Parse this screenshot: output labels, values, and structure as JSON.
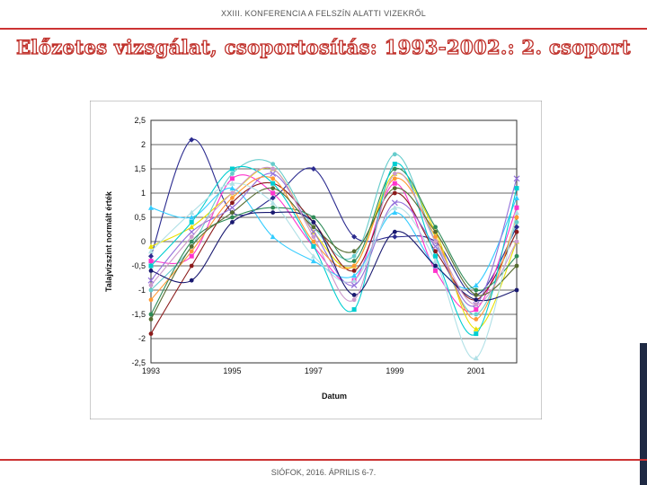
{
  "header": {
    "conference": "XXIII. KONFERENCIA A FELSZÍN ALATTI VIZEKRŐL"
  },
  "page": {
    "title": "Előzetes vizsgálat, csoportosítás: 1993-2002.: 2. csoport"
  },
  "footer": {
    "location_date": "SIÓFOK, 2016. ÁPRILIS 6-7."
  },
  "colors": {
    "accent": "#cc3333",
    "title_outline": "#c0312b",
    "side_bar": "#1f2a44"
  },
  "chart_data": {
    "type": "line",
    "xlabel": "Datum",
    "ylabel": "Talajvízszint normált érték",
    "xlim": [
      1993,
      2002
    ],
    "ylim": [
      -2.5,
      2.5
    ],
    "x_ticks": [
      1993,
      1995,
      1997,
      1999,
      2001
    ],
    "x_tick_labels": [
      "1993",
      "1995",
      "1997",
      "1999",
      "2001"
    ],
    "y_ticks": [
      -2.5,
      -2,
      -1.5,
      -1,
      -0.5,
      0,
      0.5,
      1,
      1.5,
      2,
      2.5
    ],
    "y_tick_labels": [
      "-2,5",
      "-2",
      "-1,5",
      "-1",
      "-0,5",
      "0",
      "0,5",
      "1",
      "1,5",
      "2",
      "2,5"
    ],
    "grid": "horizontal",
    "x": [
      1993,
      1994,
      1995,
      1996,
      1997,
      1998,
      1999,
      2000,
      2001,
      2002
    ],
    "series": [
      {
        "color": "#2b2b8f",
        "marker": "diamond",
        "values": [
          -0.3,
          2.1,
          0.6,
          0.9,
          1.5,
          0.1,
          0.1,
          0.0,
          -1.1,
          0.3
        ]
      },
      {
        "color": "#ff33cc",
        "marker": "square",
        "values": [
          -0.4,
          -0.3,
          1.3,
          1.0,
          -0.1,
          -0.8,
          1.2,
          -0.6,
          -1.4,
          0.7
        ]
      },
      {
        "color": "#e8e000",
        "marker": "triangle",
        "values": [
          -0.1,
          0.3,
          1.0,
          1.5,
          0.2,
          -0.5,
          1.4,
          0.2,
          -1.8,
          0.0
        ]
      },
      {
        "color": "#33ccff",
        "marker": "triangle",
        "values": [
          0.7,
          0.5,
          1.1,
          0.1,
          -0.4,
          -0.7,
          0.6,
          -0.5,
          -0.9,
          0.9
        ]
      },
      {
        "color": "#66cccc",
        "marker": "circle",
        "values": [
          -1.0,
          -0.1,
          1.4,
          1.6,
          0.3,
          -0.3,
          1.8,
          0.0,
          -1.5,
          0.4
        ]
      },
      {
        "color": "#8b1a1a",
        "marker": "circle",
        "values": [
          -1.9,
          -0.5,
          0.8,
          1.2,
          0.4,
          -0.6,
          1.0,
          -0.2,
          -1.2,
          0.2
        ]
      },
      {
        "color": "#2e8b57",
        "marker": "circle",
        "values": [
          -1.5,
          0.0,
          0.5,
          0.7,
          0.5,
          -0.4,
          1.5,
          0.3,
          -1.0,
          -0.3
        ]
      },
      {
        "color": "#9370db",
        "marker": "cross",
        "values": [
          -0.8,
          0.2,
          0.7,
          1.4,
          0.2,
          -0.9,
          0.8,
          -0.1,
          -1.3,
          1.3
        ]
      },
      {
        "color": "#ff9933",
        "marker": "circle",
        "values": [
          -1.2,
          -0.2,
          0.9,
          1.3,
          0.0,
          -0.5,
          1.3,
          0.1,
          -1.6,
          0.5
        ]
      },
      {
        "color": "#00ced1",
        "marker": "square",
        "values": [
          -0.5,
          0.4,
          1.5,
          1.2,
          -0.1,
          -1.4,
          1.6,
          -0.3,
          -1.9,
          1.1
        ]
      },
      {
        "color": "#556b2f",
        "marker": "circle",
        "values": [
          -1.6,
          -0.1,
          0.6,
          1.1,
          0.3,
          -0.2,
          1.1,
          0.2,
          -1.1,
          -0.5
        ]
      },
      {
        "color": "#b0e0e6",
        "marker": "triangle",
        "values": [
          -0.2,
          0.6,
          1.2,
          0.8,
          -0.3,
          -0.8,
          0.7,
          -0.4,
          -2.4,
          0.6
        ]
      },
      {
        "color": "#191970",
        "marker": "circle",
        "values": [
          -0.6,
          -0.8,
          0.4,
          0.6,
          0.4,
          -1.1,
          0.2,
          -0.5,
          -1.2,
          -1.0
        ]
      },
      {
        "color": "#cc99cc",
        "marker": "circle",
        "values": [
          -0.9,
          0.1,
          1.0,
          1.5,
          0.1,
          -1.2,
          1.4,
          0.0,
          -1.3,
          0.0
        ]
      }
    ]
  }
}
